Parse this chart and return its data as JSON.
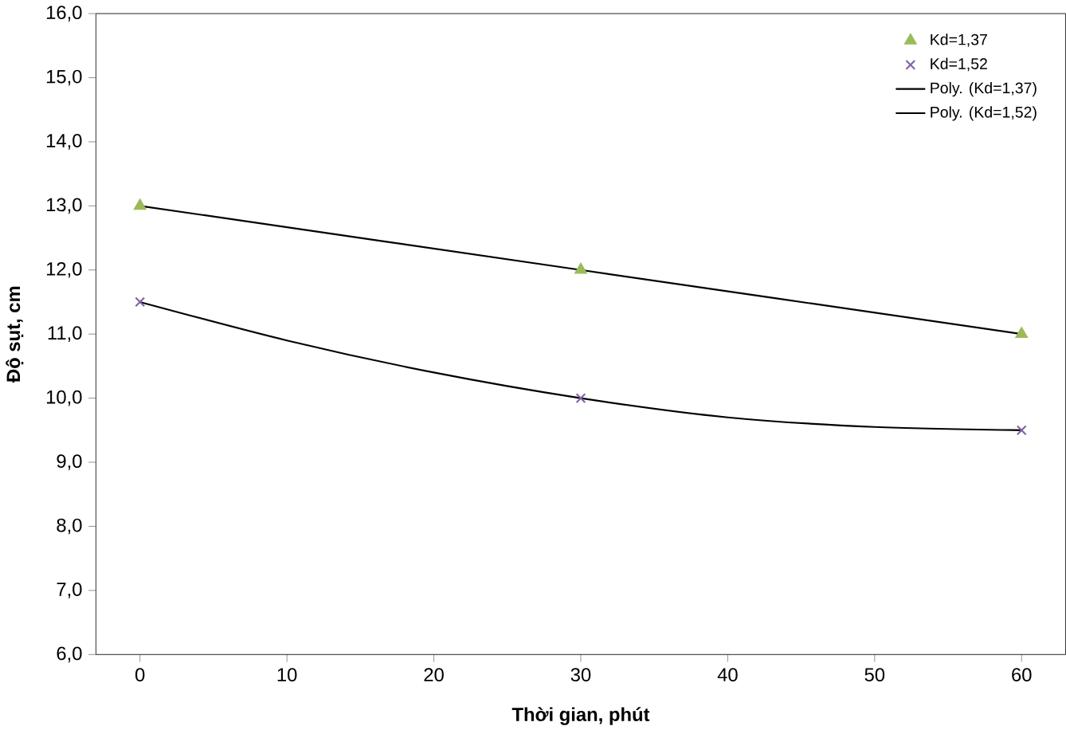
{
  "chart_data": {
    "type": "scatter",
    "xlabel": "Thời gian, phút",
    "ylabel": "Độ sụt, cm",
    "xlim": [
      -3,
      63
    ],
    "ylim": [
      6,
      16
    ],
    "xticks": [
      0,
      10,
      20,
      30,
      40,
      50,
      60
    ],
    "yticks": [
      {
        "value": 6,
        "label": "6,0"
      },
      {
        "value": 7,
        "label": "7,0"
      },
      {
        "value": 8,
        "label": "8,0"
      },
      {
        "value": 9,
        "label": "9,0"
      },
      {
        "value": 10,
        "label": "10,0"
      },
      {
        "value": 11,
        "label": "11,0"
      },
      {
        "value": 12,
        "label": "12,0"
      },
      {
        "value": 13,
        "label": "13,0"
      },
      {
        "value": 14,
        "label": "14,0"
      },
      {
        "value": 15,
        "label": "15,0"
      },
      {
        "value": 16,
        "label": "16,0"
      }
    ],
    "grid": false,
    "legend": "top right",
    "series": [
      {
        "name": "Kd=1,37",
        "marker": "triangle",
        "color": "#9bbb59",
        "x": [
          0,
          30,
          60
        ],
        "values": [
          13,
          12,
          11
        ]
      },
      {
        "name": "Kd=1,52",
        "marker": "cross",
        "color": "#8064a2",
        "x": [
          0,
          30,
          60
        ],
        "values": [
          11.5,
          10,
          9.5
        ]
      },
      {
        "name": "Poly. (Kd=1,37)",
        "type": "line",
        "marker": "none",
        "color": "#000000",
        "x": [
          0,
          30,
          60
        ],
        "values": [
          13,
          12,
          11
        ]
      },
      {
        "name": "Poly. (Kd=1,52)",
        "type": "line",
        "marker": "none",
        "color": "#000000",
        "x": [
          0,
          10,
          20,
          30,
          40,
          50,
          60
        ],
        "values": [
          11.5,
          10.9,
          10.4,
          10,
          9.7,
          9.55,
          9.5
        ]
      }
    ]
  }
}
